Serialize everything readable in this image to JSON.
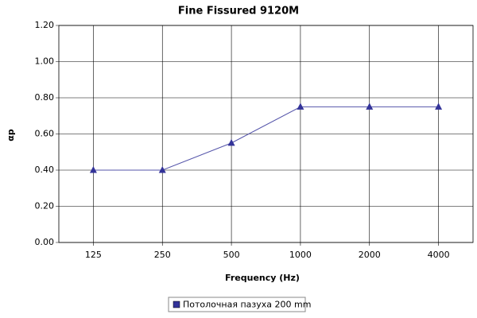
{
  "chart_data": {
    "type": "line",
    "title": "Fine Fissured 9120M",
    "x_label": "Frequency (Hz)",
    "y_label": "αp",
    "categories": [
      "125",
      "250",
      "500",
      "1000",
      "2000",
      "4000"
    ],
    "series": [
      {
        "name": "Потолочная пазуха 200 mm",
        "color": "#333399",
        "values": [
          0.4,
          0.4,
          0.55,
          0.75,
          0.75,
          0.75
        ]
      }
    ],
    "ylim": [
      0,
      1.2
    ],
    "yticks": [
      {
        "value": 0,
        "label": "0.00"
      },
      {
        "value": 0.2,
        "label": "0.20"
      },
      {
        "value": 0.4,
        "label": "0.40"
      },
      {
        "value": 0.6,
        "label": "0.60"
      },
      {
        "value": 0.8,
        "label": "0.80"
      },
      {
        "value": 1.0,
        "label": "1.00"
      },
      {
        "value": 1.2,
        "label": "1.20"
      }
    ],
    "grid": true,
    "legend": "bottom"
  }
}
